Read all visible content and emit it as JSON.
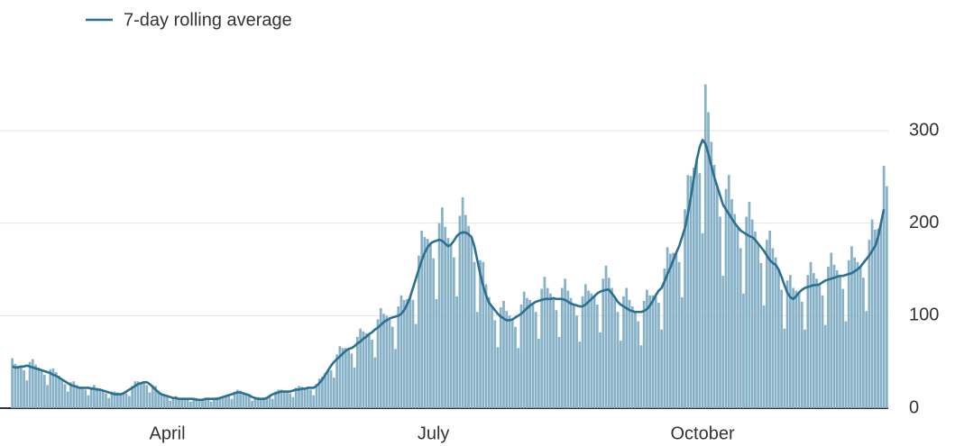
{
  "chart_data": {
    "type": "bar",
    "legend": "top-left",
    "grid": true,
    "ylim": [
      0,
      350
    ],
    "yticks": [
      0,
      100,
      200,
      300
    ],
    "categories": [
      null,
      null,
      null,
      null,
      null,
      null,
      null,
      null,
      null,
      null,
      null,
      null,
      null,
      null,
      null,
      null,
      null,
      null,
      null,
      null,
      null,
      null,
      null,
      null,
      null,
      null,
      null,
      null,
      null,
      null,
      null,
      null,
      null,
      null,
      null,
      null,
      null,
      null,
      null,
      null,
      null,
      null,
      null,
      null,
      null,
      null,
      null,
      null,
      null,
      null,
      null,
      null,
      null,
      "April",
      null,
      null,
      null,
      null,
      null,
      null,
      null,
      null,
      null,
      null,
      null,
      null,
      null,
      null,
      null,
      null,
      null,
      null,
      null,
      null,
      null,
      null,
      null,
      null,
      null,
      null,
      null,
      null,
      null,
      null,
      null,
      null,
      null,
      null,
      null,
      null,
      null,
      null,
      null,
      null,
      null,
      null,
      null,
      null,
      null,
      null,
      null,
      null,
      null,
      null,
      null,
      null,
      null,
      null,
      null,
      null,
      null,
      null,
      null,
      null,
      null,
      null,
      null,
      null,
      null,
      null,
      null,
      null,
      null,
      null,
      null,
      null,
      null,
      null,
      null,
      null,
      null,
      null,
      null,
      null,
      null,
      null,
      null,
      null,
      null,
      null,
      null,
      null,
      null,
      null,
      "July",
      null,
      null,
      null,
      null,
      null,
      null,
      null,
      null,
      null,
      null,
      null,
      null,
      null,
      null,
      null,
      null,
      null,
      null,
      null,
      null,
      null,
      null,
      null,
      null,
      null,
      null,
      null,
      null,
      null,
      null,
      null,
      null,
      null,
      null,
      null,
      null,
      null,
      null,
      null,
      null,
      null,
      null,
      null,
      null,
      null,
      null,
      null,
      null,
      null,
      null,
      null,
      null,
      null,
      null,
      null,
      null,
      null,
      null,
      null,
      null,
      null,
      null,
      null,
      null,
      null,
      null,
      null,
      null,
      null,
      null,
      null,
      null,
      null,
      null,
      null,
      null,
      null,
      null,
      null,
      null,
      null,
      null,
      null,
      null,
      null,
      null,
      null,
      null,
      null,
      null,
      null,
      "October",
      null,
      null,
      null,
      null,
      null,
      null,
      null,
      null,
      null,
      null,
      null,
      null,
      null,
      null,
      null,
      null,
      null,
      null,
      null,
      null,
      null,
      null,
      null,
      null,
      null,
      null,
      null,
      null,
      null,
      null,
      null,
      null,
      null,
      null,
      null,
      null,
      null,
      null,
      null,
      null,
      null,
      null,
      null,
      null,
      null,
      null,
      null,
      null,
      null,
      null,
      null,
      null,
      null,
      null,
      null,
      null,
      null,
      null,
      null,
      null,
      null,
      null,
      null
    ],
    "series": [
      {
        "type": "bar",
        "color": "#86b1c7",
        "values": [
          54,
          48,
          46,
          45,
          41,
          30,
          50,
          53,
          47,
          44,
          41,
          36,
          25,
          42,
          43,
          39,
          35,
          31,
          26,
          18,
          28,
          29,
          25,
          23,
          22,
          20,
          14,
          23,
          25,
          22,
          21,
          19,
          16,
          11,
          18,
          18,
          17,
          16,
          16,
          16,
          13,
          24,
          29,
          29,
          28,
          28,
          25,
          17,
          25,
          24,
          19,
          16,
          14,
          12,
          8,
          12,
          13,
          11,
          11,
          10,
          9,
          7,
          11,
          11,
          10,
          9,
          10,
          9,
          7,
          11,
          12,
          12,
          13,
          13,
          13,
          10,
          18,
          20,
          19,
          17,
          15,
          13,
          8,
          12,
          12,
          11,
          11,
          11,
          12,
          10,
          18,
          20,
          20,
          19,
          18,
          16,
          12,
          22,
          24,
          23,
          22,
          22,
          20,
          14,
          26,
          32,
          34,
          38,
          41,
          41,
          33,
          58,
          67,
          65,
          65,
          64,
          59,
          44,
          77,
          86,
          83,
          81,
          80,
          74,
          55,
          96,
          108,
          102,
          100,
          97,
          88,
          64,
          110,
          122,
          117,
          118,
          120,
          117,
          91,
          165,
          192,
          185,
          183,
          178,
          162,
          118,
          200,
          217,
          196,
          184,
          177,
          163,
          121,
          208,
          228,
          209,
          197,
          185,
          158,
          104,
          160,
          158,
          134,
          120,
          110,
          95,
          66,
          109,
          116,
          105,
          100,
          96,
          88,
          65,
          112,
          126,
          119,
          117,
          113,
          104,
          75,
          129,
          142,
          130,
          124,
          119,
          106,
          77,
          130,
          140,
          127,
          119,
          112,
          100,
          72,
          121,
          134,
          127,
          124,
          121,
          112,
          82,
          140,
          154,
          141,
          130,
          120,
          104,
          73,
          121,
          130,
          117,
          110,
          104,
          94,
          68,
          116,
          128,
          122,
          122,
          122,
          114,
          85,
          151,
          174,
          167,
          168,
          168,
          158,
          120,
          215,
          252,
          251,
          260,
          268,
          254,
          189,
          350,
          320,
          288,
          263,
          240,
          207,
          143,
          237,
          252,
          226,
          210,
          196,
          173,
          124,
          207,
          223,
          204,
          191,
          178,
          157,
          111,
          182,
          192,
          173,
          163,
          150,
          128,
          86,
          138,
          144,
          130,
          127,
          125,
          115,
          85,
          144,
          158,
          146,
          140,
          134,
          122,
          90,
          153,
          168,
          155,
          149,
          143,
          129,
          94,
          160,
          175,
          163,
          158,
          153,
          141,
          105,
          182,
          204,
          193,
          194,
          200,
          262,
          240
        ]
      },
      {
        "type": "line",
        "name": "7-day rolling average",
        "color": "#2c7090",
        "values": [
          45,
          44,
          44,
          45,
          45,
          46,
          45,
          44,
          43,
          42,
          41,
          40,
          39,
          38,
          36,
          35,
          33,
          31,
          29,
          27,
          25,
          24,
          23,
          22,
          22,
          22,
          22,
          21,
          21,
          20,
          20,
          19,
          18,
          17,
          16,
          15,
          15,
          15,
          16,
          18,
          20,
          22,
          24,
          26,
          27,
          28,
          28,
          26,
          23,
          20,
          17,
          15,
          14,
          13,
          12,
          11,
          11,
          10,
          10,
          10,
          10,
          10,
          10,
          9,
          9,
          9,
          10,
          10,
          10,
          10,
          10,
          11,
          12,
          13,
          14,
          15,
          16,
          17,
          17,
          16,
          15,
          14,
          12,
          11,
          10,
          10,
          10,
          11,
          13,
          15,
          16,
          17,
          18,
          18,
          18,
          18,
          19,
          20,
          20,
          21,
          21,
          22,
          22,
          22,
          24,
          27,
          31,
          36,
          41,
          46,
          50,
          53,
          56,
          59,
          62,
          64,
          65,
          67,
          70,
          72,
          75,
          77,
          80,
          82,
          85,
          87,
          90,
          93,
          95,
          97,
          98,
          99,
          100,
          102,
          106,
          112,
          120,
          130,
          140,
          150,
          160,
          168,
          174,
          178,
          180,
          181,
          182,
          181,
          178,
          175,
          177,
          181,
          186,
          189,
          190,
          190,
          188,
          185,
          175,
          160,
          145,
          132,
          122,
          114,
          110,
          106,
          102,
          99,
          97,
          95,
          95,
          96,
          98,
          100,
          102,
          105,
          108,
          111,
          113,
          115,
          116,
          117,
          118,
          118,
          118,
          119,
          118,
          118,
          118,
          117,
          115,
          113,
          112,
          111,
          110,
          110,
          112,
          115,
          118,
          121,
          124,
          126,
          127,
          128,
          128,
          124,
          120,
          115,
          112,
          110,
          108,
          106,
          105,
          104,
          104,
          104,
          105,
          107,
          111,
          116,
          122,
          127,
          130,
          137,
          145,
          152,
          160,
          168,
          175,
          185,
          195,
          210,
          228,
          248,
          268,
          282,
          290,
          286,
          275,
          262,
          250,
          240,
          230,
          220,
          215,
          210,
          205,
          200,
          196,
          192,
          190,
          188,
          186,
          185,
          182,
          178,
          174,
          170,
          165,
          160,
          157,
          155,
          150,
          142,
          133,
          125,
          120,
          118,
          121,
          125,
          128,
          130,
          131,
          132,
          133,
          133,
          134,
          136,
          138,
          139,
          140,
          141,
          142,
          143,
          143,
          144,
          145,
          146,
          148,
          150,
          153,
          157,
          161,
          165,
          170,
          175,
          185,
          200,
          215,
          null
        ]
      }
    ]
  }
}
